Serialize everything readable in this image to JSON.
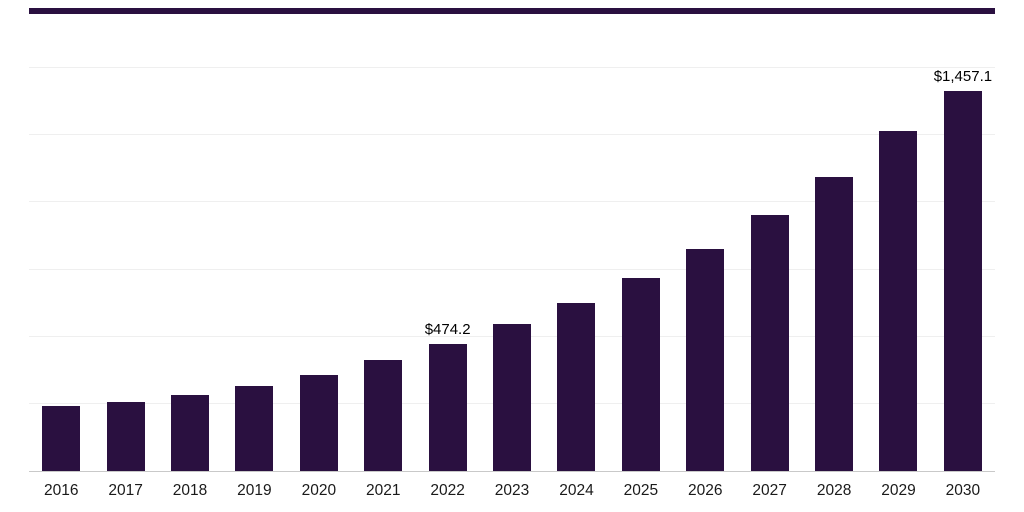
{
  "chart_data": {
    "type": "bar",
    "categories": [
      "2016",
      "2017",
      "2018",
      "2019",
      "2020",
      "2021",
      "2022",
      "2023",
      "2024",
      "2025",
      "2026",
      "2027",
      "2028",
      "2029",
      "2030"
    ],
    "values": [
      242,
      256,
      282,
      316,
      357,
      413,
      474.2,
      546,
      624,
      717,
      825,
      952,
      1093,
      1264,
      1457.1
    ],
    "data_labels": [
      "",
      "",
      "",
      "",
      "",
      "",
      "$474.2",
      "",
      "",
      "",
      "",
      "",
      "",
      "",
      "$1,457.1"
    ],
    "ylim": [
      0,
      1500
    ],
    "gridline_step": 250,
    "grid": true,
    "legend": false,
    "bar_color": "#2a1040",
    "gridline_color": "#efefef",
    "axis_line_color": "#c9c9c9",
    "tick_label_color": "#1a1a1a",
    "value_label_color": "#000000"
  }
}
